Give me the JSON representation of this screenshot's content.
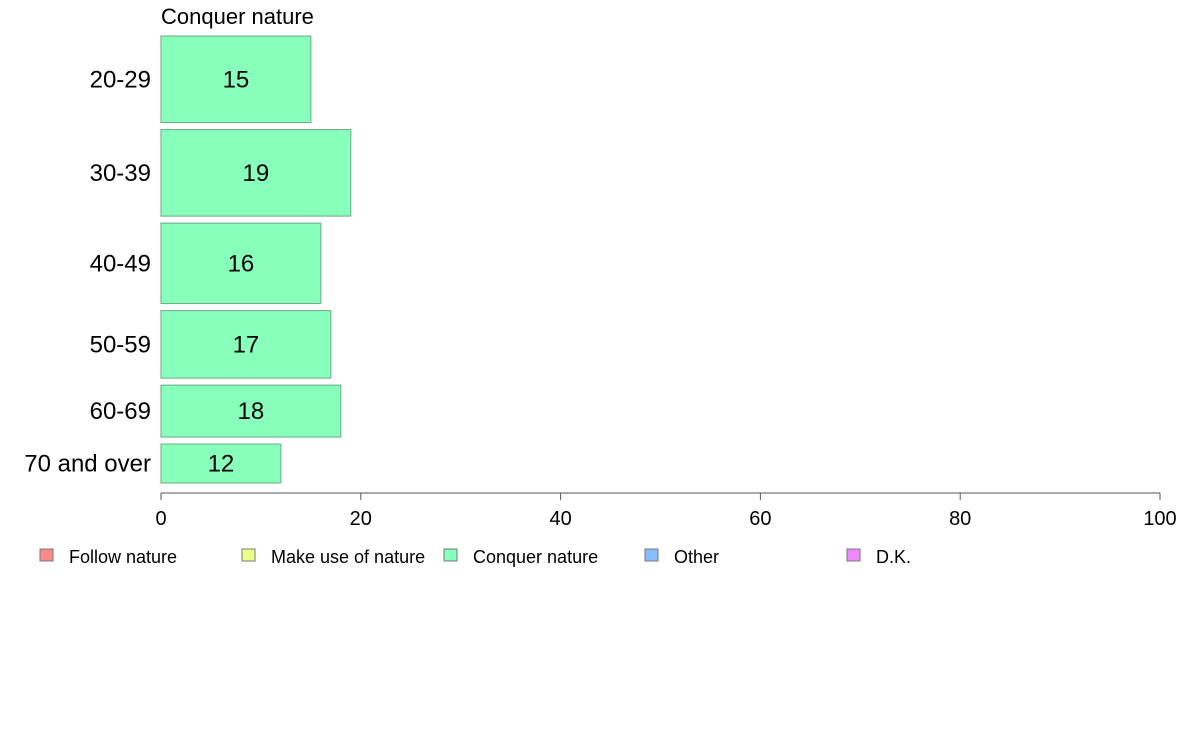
{
  "chart_data": {
    "type": "bar",
    "orientation": "horizontal",
    "title": "Conquer nature",
    "categories": [
      "20-29",
      "30-39",
      "40-49",
      "50-59",
      "60-69",
      "70 and over"
    ],
    "series": [
      {
        "name": "Conquer nature",
        "color": "#88ffbb",
        "values": [
          15,
          19,
          16,
          17,
          18,
          12
        ],
        "value_labels": [
          "15",
          "19",
          "16",
          "17",
          "18",
          "12"
        ]
      }
    ],
    "category_weights": [
      1.0,
      1.0,
      0.93,
      0.78,
      0.6,
      0.45
    ],
    "xlim": [
      0,
      100
    ],
    "x_ticks": [
      0,
      20,
      40,
      60,
      80,
      100
    ],
    "x_tick_labels": [
      "0",
      "20",
      "40",
      "60",
      "80",
      "100"
    ],
    "xlabel": "",
    "ylabel": "",
    "grid": false,
    "legend_position": "bottom",
    "legend": [
      {
        "label": "Follow nature",
        "color": "#ff8888"
      },
      {
        "label": "Make use of nature",
        "color": "#eeff88"
      },
      {
        "label": "Conquer nature",
        "color": "#88ffbb"
      },
      {
        "label": "Other",
        "color": "#88bbff"
      },
      {
        "label": "D.K.",
        "color": "#ee88ff"
      }
    ]
  }
}
